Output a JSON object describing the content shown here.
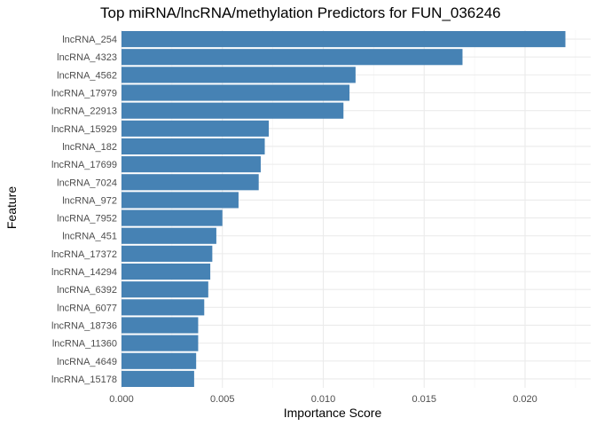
{
  "chart_data": {
    "type": "bar",
    "orientation": "horizontal",
    "title": "Top miRNA/lncRNA/methylation Predictors for FUN_036246",
    "xlabel": "Importance Score",
    "ylabel": "Feature",
    "xlim": [
      0,
      0.0228
    ],
    "x_ticks": [
      "0.000",
      "0.005",
      "0.010",
      "0.015",
      "0.020"
    ],
    "x_tick_values": [
      0,
      0.005,
      0.01,
      0.015,
      0.02
    ],
    "bar_color": "#4682B4",
    "grid": true,
    "categories": [
      "lncRNA_254",
      "lncRNA_4323",
      "lncRNA_4562",
      "lncRNA_17979",
      "lncRNA_22913",
      "lncRNA_15929",
      "lncRNA_182",
      "lncRNA_17699",
      "lncRNA_7024",
      "lncRNA_972",
      "lncRNA_7952",
      "lncRNA_451",
      "lncRNA_17372",
      "lncRNA_14294",
      "lncRNA_6392",
      "lncRNA_6077",
      "lncRNA_18736",
      "lncRNA_11360",
      "lncRNA_4649",
      "lncRNA_15178"
    ],
    "values": [
      0.022,
      0.0169,
      0.0116,
      0.0113,
      0.011,
      0.0073,
      0.0071,
      0.0069,
      0.0068,
      0.0058,
      0.005,
      0.0047,
      0.0045,
      0.0044,
      0.0043,
      0.0041,
      0.0038,
      0.0038,
      0.0037,
      0.0036
    ]
  }
}
